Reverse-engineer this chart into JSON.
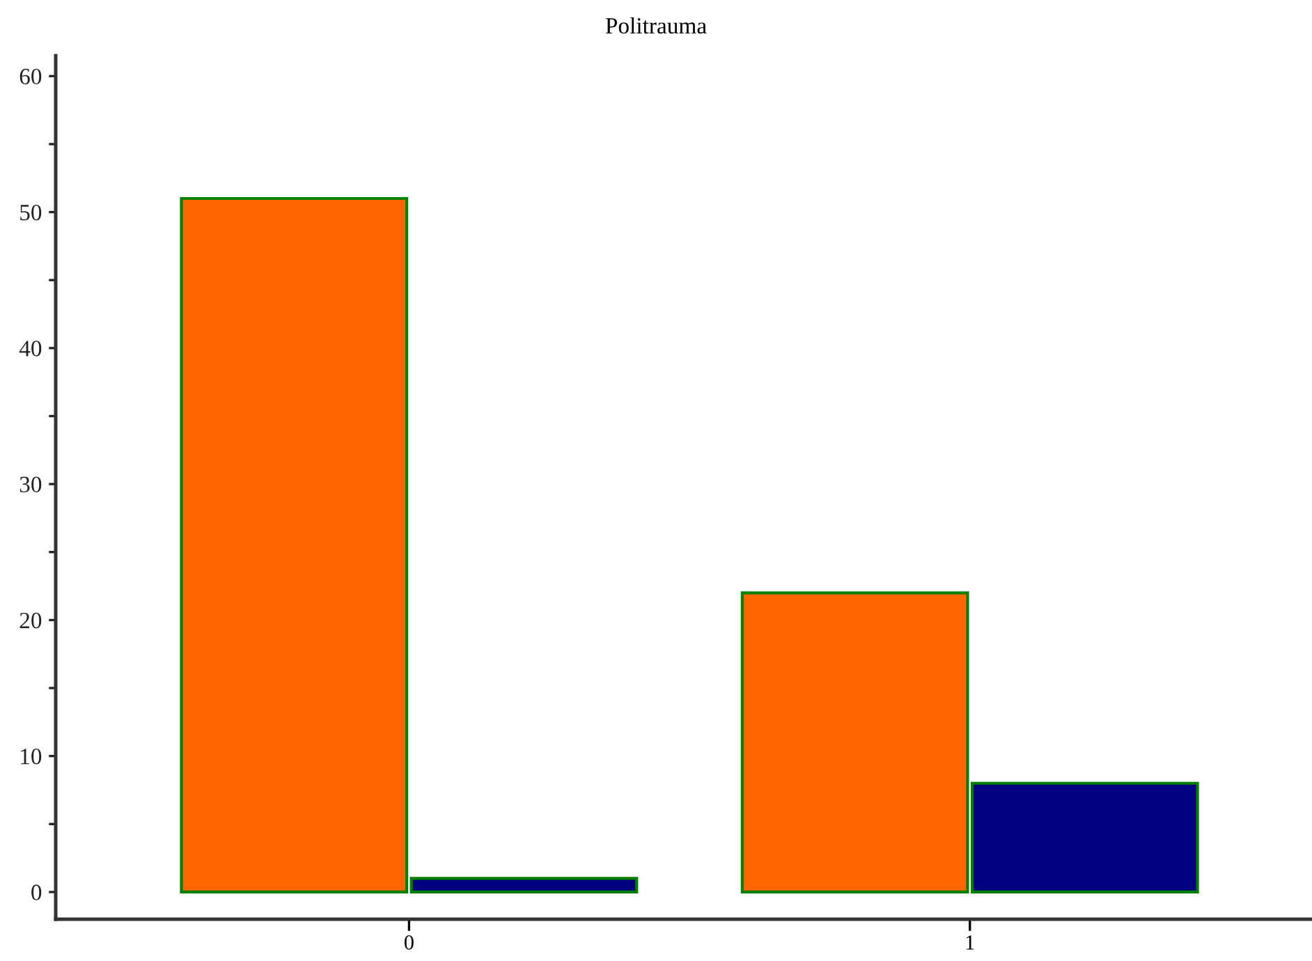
{
  "chart_data": {
    "type": "bar",
    "title": "Politrauma",
    "categories": [
      "0",
      "1"
    ],
    "series": [
      {
        "color": "#ff6600",
        "values": [
          51,
          22
        ]
      },
      {
        "color": "#000080",
        "values": [
          1,
          8
        ]
      }
    ],
    "ylim": [
      -2,
      61.5
    ],
    "yticks": [
      0,
      {
        "value": 5,
        "label": null
      },
      10,
      {
        "value": 15,
        "label": null
      },
      20,
      {
        "value": 25,
        "label": null
      },
      30,
      {
        "value": 35,
        "label": null
      },
      40,
      {
        "value": 45,
        "label": null
      },
      50,
      {
        "value": 55,
        "label": null
      },
      60
    ],
    "grid": false,
    "legend": false
  }
}
